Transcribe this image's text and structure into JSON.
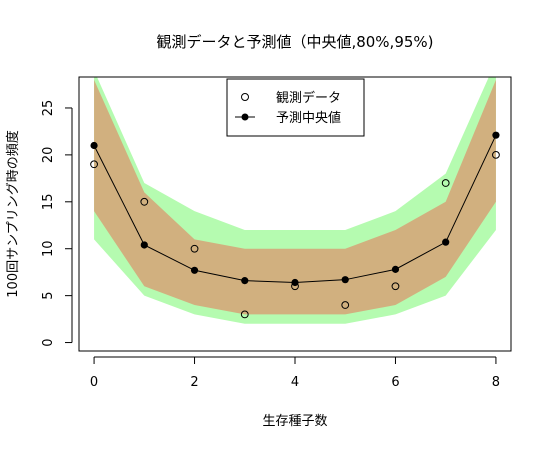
{
  "chart_data": {
    "type": "line",
    "title": "観測データと予測値（中央値,80%,95%)",
    "xlabel": "生存種子数",
    "ylabel": "100回サンプリング時の頻度",
    "xlim": [
      -0.3,
      8.3
    ],
    "ylim": [
      -0.9,
      28.3
    ],
    "x_ticks": [
      0,
      2,
      4,
      6,
      8
    ],
    "y_ticks": [
      0,
      5,
      10,
      15,
      20,
      25
    ],
    "x": [
      0,
      1,
      2,
      3,
      4,
      5,
      6,
      7,
      8
    ],
    "observed": {
      "name": "観測データ",
      "values": [
        19,
        15,
        10,
        3,
        6,
        4,
        6,
        17,
        20
      ]
    },
    "predicted_median": {
      "name": "予測中央値",
      "values": [
        21,
        10.4,
        7.7,
        6.6,
        6.4,
        6.7,
        7.8,
        10.7,
        22.1
      ]
    },
    "band_95": {
      "lower": [
        11,
        5,
        3,
        2,
        2,
        2,
        3,
        5,
        12
      ],
      "upper": [
        29,
        17,
        14,
        12,
        12,
        12,
        14,
        18,
        30
      ],
      "color": "#b5fbb0"
    },
    "band_80": {
      "lower": [
        14,
        6,
        4,
        3,
        3,
        3,
        4,
        7,
        15
      ],
      "upper": [
        28,
        16,
        11,
        10,
        10,
        10,
        12,
        15,
        28
      ],
      "color": "#d1b07f"
    },
    "legend": {
      "position": "top-center",
      "entries": [
        "観測データ",
        "予測中央値"
      ]
    },
    "grid": false
  }
}
